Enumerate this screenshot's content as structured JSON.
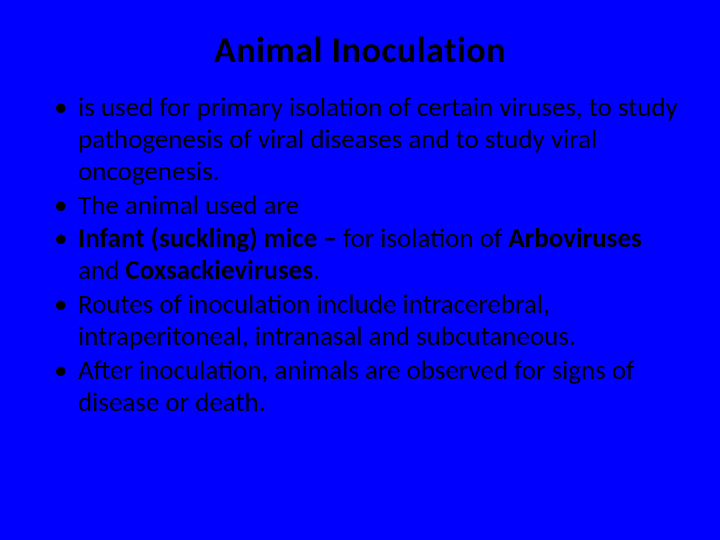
{
  "background_color": "#0000ff",
  "text_color": "#000000",
  "title": {
    "text": "Animal Inoculation",
    "font_size": 36,
    "font_weight": 700,
    "align": "center"
  },
  "bullets": {
    "font_size": 27,
    "marker": "•",
    "items": [
      {
        "runs": [
          {
            "text": "is used for primary isolation of certain viruses, to study pathogenesis of viral diseases and to study viral oncogenesis.",
            "bold": false
          }
        ]
      },
      {
        "runs": [
          {
            "text": "The animal used are",
            "bold": false
          }
        ]
      },
      {
        "runs": [
          {
            "text": "Infant (suckling) mice – ",
            "bold": true
          },
          {
            "text": "for isolation of ",
            "bold": false
          },
          {
            "text": "Arboviruses",
            "bold": true
          },
          {
            "text": " and ",
            "bold": false
          },
          {
            "text": "Coxsackieviruses",
            "bold": true
          },
          {
            "text": ".",
            "bold": false
          }
        ]
      },
      {
        "runs": [
          {
            "text": "Routes of inoculation include intracerebral, intraperitoneal, intranasal and subcutaneous.",
            "bold": false
          }
        ]
      },
      {
        "runs": [
          {
            "text": "After inoculation, animals are observed for signs of disease or death.",
            "bold": false
          }
        ]
      }
    ]
  }
}
